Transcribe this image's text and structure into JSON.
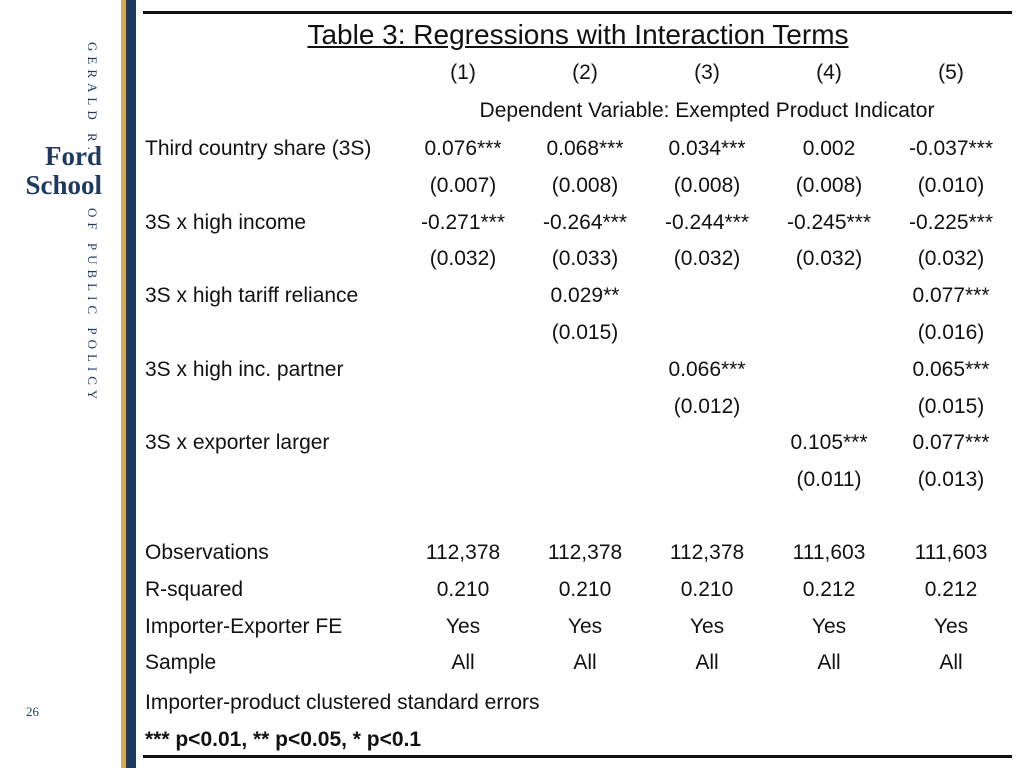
{
  "brand": {
    "top": "GERALD R.",
    "name": "Ford School",
    "bottom": "OF PUBLIC POLICY"
  },
  "page_number": "26",
  "table": {
    "title": "Table 3:   Regressions with Interaction Terms",
    "columns": [
      "(1)",
      "(2)",
      "(3)",
      "(4)",
      "(5)"
    ],
    "dependent_variable": "Dependent Variable: Exempted Product Indicator",
    "rows": [
      {
        "label": "Third country share (3S)",
        "cells": [
          "0.076***",
          "0.068***",
          "0.034***",
          "0.002",
          "-0.037***"
        ]
      },
      {
        "label": null,
        "cells": [
          "(0.007)",
          "(0.008)",
          "(0.008)",
          "(0.008)",
          "(0.010)"
        ]
      },
      {
        "label": "3S x high income",
        "cells": [
          "-0.271***",
          "-0.264***",
          "-0.244***",
          "-0.245***",
          "-0.225***"
        ]
      },
      {
        "label": null,
        "cells": [
          "(0.032)",
          "(0.033)",
          "(0.032)",
          "(0.032)",
          "(0.032)"
        ]
      },
      {
        "label": "3S x high tariff reliance",
        "cells": [
          null,
          "0.029**",
          null,
          null,
          "0.077***"
        ]
      },
      {
        "label": null,
        "cells": [
          null,
          "(0.015)",
          null,
          null,
          "(0.016)"
        ]
      },
      {
        "label": "3S x high inc. partner",
        "cells": [
          null,
          null,
          "0.066***",
          null,
          "0.065***"
        ]
      },
      {
        "label": null,
        "cells": [
          null,
          null,
          "(0.012)",
          null,
          "(0.015)"
        ]
      },
      {
        "label": "3S x exporter larger",
        "cells": [
          null,
          null,
          null,
          "0.105***",
          "0.077***"
        ]
      },
      {
        "label": null,
        "cells": [
          null,
          null,
          null,
          "(0.011)",
          "(0.013)"
        ]
      }
    ],
    "stats": [
      {
        "label": "Observations",
        "cells": [
          "112,378",
          "112,378",
          "112,378",
          "111,603",
          "111,603"
        ]
      },
      {
        "label": "R-squared",
        "cells": [
          "0.210",
          "0.210",
          "0.210",
          "0.212",
          "0.212"
        ]
      },
      {
        "label": "Importer-Exporter FE",
        "cells": [
          "Yes",
          "Yes",
          "Yes",
          "Yes",
          "Yes"
        ]
      },
      {
        "label": "Sample",
        "cells": [
          "All",
          "All",
          "All",
          "All",
          "All"
        ]
      }
    ],
    "notes": [
      "Importer-product  clustered standard errors",
      "*** p<0.01, ** p<0.05, * p<0.1"
    ]
  }
}
